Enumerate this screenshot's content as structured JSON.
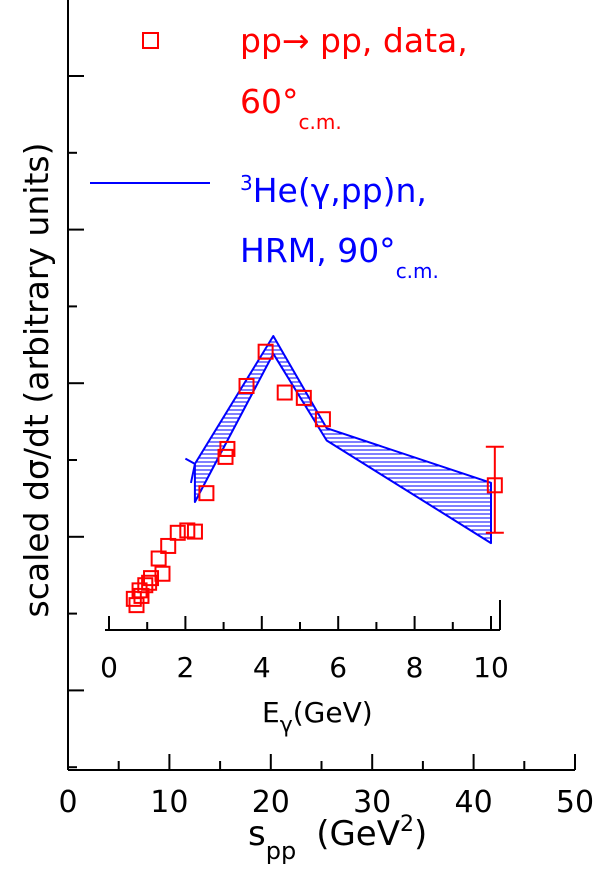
{
  "chart_data": {
    "type": "scatter",
    "ylabel": "scaled dσ/dt (arbitrary units)",
    "y_log": true,
    "y_ticks_labeled": false,
    "colors": {
      "data": "#ff0000",
      "band": "#0000ff",
      "axes": "#000000"
    },
    "bottom_axis": {
      "label_main": "s",
      "label_sub": "pp",
      "label_units": "(GeV",
      "label_sup": "2",
      "label_close": ")",
      "range": [
        0,
        50
      ],
      "ticks": [
        "0",
        "10",
        "20",
        "30",
        "40",
        "50"
      ]
    },
    "top_axis": {
      "label_main": "E",
      "label_sub": "γ",
      "label_units": "(GeV)",
      "range": [
        0,
        10
      ],
      "ticks": [
        "0",
        "2",
        "4",
        "6",
        "8",
        "10"
      ]
    },
    "legend": {
      "placement": "top",
      "entry1": {
        "line1": "pp→ pp,  data,",
        "line2": "60°",
        "line2_sub": "c.m."
      },
      "entry2": {
        "line1_sup": "3",
        "line1": "He(γ,pp)n,",
        "line2": "HRM,  90°",
        "line2_sub": "c.m."
      }
    },
    "series": [
      {
        "name": "pp→ pp, data, 60° c.m.",
        "marker": "open-square",
        "x_units": "GeV (E_γ)",
        "points": [
          {
            "x": 0.65,
            "y": 1.2
          },
          {
            "x": 0.72,
            "y": 1.1
          },
          {
            "x": 0.8,
            "y": 1.35
          },
          {
            "x": 0.85,
            "y": 1.25
          },
          {
            "x": 0.95,
            "y": 1.45
          },
          {
            "x": 1.1,
            "y": 1.6
          },
          {
            "x": 1.05,
            "y": 1.5
          },
          {
            "x": 1.3,
            "y": 2.1
          },
          {
            "x": 1.4,
            "y": 1.7
          },
          {
            "x": 1.55,
            "y": 2.5
          },
          {
            "x": 1.8,
            "y": 3.0
          },
          {
            "x": 2.05,
            "y": 3.1
          },
          {
            "x": 2.25,
            "y": 3.05
          },
          {
            "x": 2.55,
            "y": 5.2
          },
          {
            "x": 3.05,
            "y": 8.6
          },
          {
            "x": 3.1,
            "y": 9.6
          },
          {
            "x": 3.6,
            "y": 23.0
          },
          {
            "x": 4.1,
            "y": 37.0
          },
          {
            "x": 4.6,
            "y": 21.0
          },
          {
            "x": 5.1,
            "y": 19.5
          },
          {
            "x": 5.6,
            "y": 14.5
          },
          {
            "x": 10.1,
            "y": 5.8,
            "yerr_low": 3.0,
            "yerr_high": 9.9
          }
        ]
      },
      {
        "name": "3He(γ,pp)n, HRM, 90° c.m.",
        "type": "band",
        "hatch": "horizontal",
        "upper": [
          [
            2.25,
            7.8
          ],
          [
            4.3,
            46.0
          ],
          [
            5.7,
            12.8
          ],
          [
            10.0,
            6.0
          ]
        ],
        "lower": [
          [
            2.25,
            4.6
          ],
          [
            4.3,
            36.0
          ],
          [
            5.7,
            10.8
          ],
          [
            10.0,
            2.6
          ]
        ],
        "notch": [
          2.0,
          8.4
        ]
      }
    ]
  }
}
